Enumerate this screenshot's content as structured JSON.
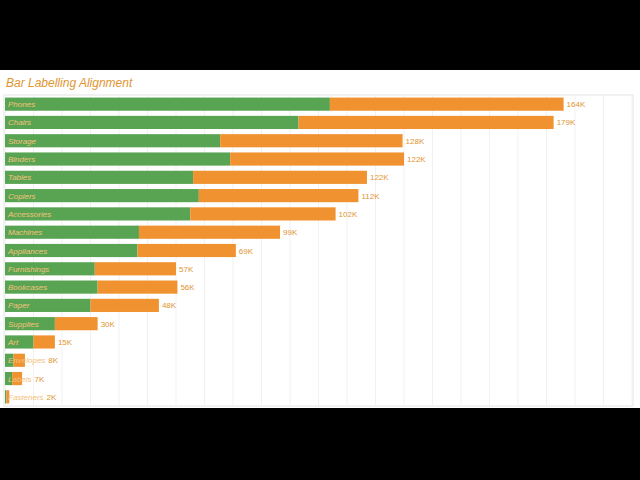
{
  "chart_data": {
    "type": "bar",
    "title": "Bar Labelling Alignment",
    "orientation": "horizontal",
    "stacked": true,
    "data_labels": true,
    "grid": true,
    "tick_labels": "y",
    "categories": [
      "Phones",
      "Chairs",
      "Storage",
      "Binders",
      "Tables",
      "Copiers",
      "Accessories",
      "Machines",
      "Appliances",
      "Furnishings",
      "Bookcases",
      "Paper",
      "Supplies",
      "Art",
      "Envelopes",
      "Labels",
      "Fasteners"
    ],
    "xlim": [
      0,
      440000
    ],
    "xticks": [
      0,
      20000,
      40000,
      60000,
      80000,
      100000,
      120000,
      140000,
      160000,
      180000,
      200000,
      220000,
      240000,
      260000,
      280000,
      300000,
      320000,
      340000,
      360000,
      380000,
      400000,
      420000,
      440000
    ],
    "series": [
      {
        "color": "#59a453",
        "values": [
          228000,
          206000,
          151000,
          158000,
          132000,
          136000,
          130000,
          94000,
          93000,
          63000,
          65000,
          60000,
          35000,
          20000,
          6000,
          5000,
          1000
        ]
      },
      {
        "color": "#f0922f",
        "values": [
          164000,
          179000,
          128000,
          122000,
          122000,
          112000,
          102000,
          99000,
          69000,
          57000,
          56000,
          48000,
          30000,
          15000,
          8000,
          7000,
          2000
        ],
        "value_labels": [
          "164K",
          "179K",
          "128K",
          "122K",
          "122K",
          "112K",
          "102K",
          "99K",
          "69K",
          "57K",
          "56K",
          "48K",
          "30K",
          "15K",
          "8K",
          "7K",
          "2K"
        ]
      }
    ]
  }
}
